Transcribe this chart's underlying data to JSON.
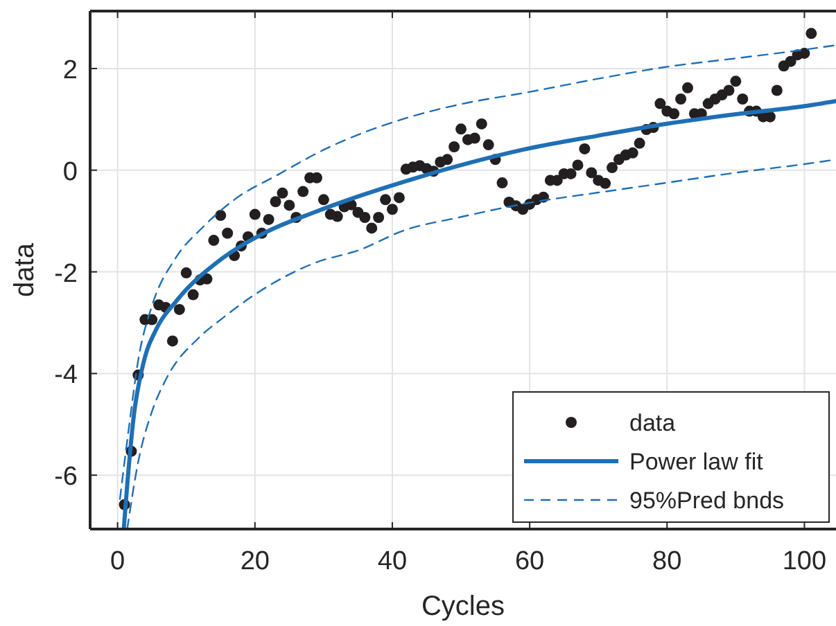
{
  "chart_data": {
    "type": "scatter",
    "xlabel": "Cycles",
    "ylabel": "data",
    "xlim": [
      -4,
      104.6
    ],
    "ylim": [
      -7.06,
      3.13
    ],
    "xticks": [
      0,
      20,
      40,
      60,
      80,
      100
    ],
    "yticks": [
      -6,
      -4,
      -2,
      0,
      2
    ],
    "grid": true,
    "legend": "bottom right",
    "series": [
      {
        "name": "data",
        "type": "scatter",
        "marker": "circle",
        "color": "#231f20",
        "x": [
          1,
          2,
          3,
          4,
          5,
          6,
          7,
          8,
          9,
          10,
          11,
          12,
          13,
          14,
          15,
          16,
          17,
          18,
          19,
          20,
          21,
          22,
          23,
          24,
          25,
          26,
          27,
          28,
          29,
          30,
          31,
          32,
          33,
          34,
          35,
          36,
          37,
          38,
          39,
          40,
          41,
          42,
          43,
          44,
          45,
          46,
          47,
          48,
          49,
          50,
          51,
          52,
          53,
          54,
          55,
          56,
          57,
          58,
          59,
          60,
          61,
          62,
          63,
          64,
          65,
          66,
          67,
          68,
          69,
          70,
          71,
          72,
          73,
          74,
          75,
          76,
          77,
          78,
          79,
          80,
          81,
          82,
          83,
          84,
          85,
          86,
          87,
          88,
          89,
          90,
          91,
          92,
          93,
          94,
          95,
          96,
          97,
          98,
          99,
          100,
          101
        ],
        "values": [
          -6.58,
          -5.53,
          -4.03,
          -2.94,
          -2.94,
          -2.65,
          -2.7,
          -3.36,
          -2.74,
          -2.02,
          -2.45,
          -2.16,
          -2.14,
          -1.38,
          -0.89,
          -1.24,
          -1.68,
          -1.49,
          -1.31,
          -0.87,
          -1.24,
          -0.97,
          -0.62,
          -0.45,
          -0.69,
          -0.93,
          -0.42,
          -0.15,
          -0.15,
          -0.58,
          -0.87,
          -0.91,
          -0.72,
          -0.68,
          -0.83,
          -0.93,
          -1.14,
          -0.93,
          -0.58,
          -0.77,
          -0.54,
          0.02,
          0.06,
          0.09,
          0.03,
          -0.02,
          0.16,
          0.21,
          0.46,
          0.81,
          0.6,
          0.63,
          0.91,
          0.5,
          0.21,
          -0.25,
          -0.63,
          -0.7,
          -0.77,
          -0.67,
          -0.58,
          -0.53,
          -0.2,
          -0.2,
          -0.07,
          -0.07,
          0.1,
          0.42,
          -0.05,
          -0.2,
          -0.26,
          0.05,
          0.21,
          0.3,
          0.34,
          0.53,
          0.8,
          0.84,
          1.31,
          1.16,
          1.11,
          1.4,
          1.62,
          1.11,
          1.11,
          1.31,
          1.4,
          1.48,
          1.57,
          1.75,
          1.4,
          1.16,
          1.16,
          1.05,
          1.05,
          1.57,
          2.05,
          2.14,
          2.27,
          2.3,
          2.69
        ]
      },
      {
        "name": "Power law fit",
        "type": "line",
        "line_style": "solid",
        "color": "#1f6fb5",
        "x": [
          0.9,
          1.35,
          2.36,
          3.7,
          5.7,
          8.4,
          15.2,
          21.9,
          28.6,
          35.4,
          41.4,
          50,
          59.6,
          70,
          79.8,
          90,
          100,
          104.6
        ],
        "values": [
          -7.06,
          -6.28,
          -4.83,
          -3.83,
          -3.11,
          -2.6,
          -1.74,
          -1.2,
          -0.83,
          -0.5,
          -0.24,
          0.1,
          0.42,
          0.68,
          0.91,
          1.1,
          1.26,
          1.36
        ]
      },
      {
        "name": "95%Pred bnds",
        "type": "line",
        "line_style": "dashed",
        "color": "#1f6fb5",
        "x": [
          1.4,
          3,
          5,
          7.1,
          11.8,
          15.2,
          20.5,
          28.6,
          35.4,
          41.4,
          50,
          59.6,
          70,
          79.8,
          90,
          100,
          104.6
        ],
        "values": [
          -7.06,
          -5.74,
          -4.75,
          -4.1,
          -3.3,
          -2.92,
          -2.4,
          -1.83,
          -1.56,
          -1.2,
          -0.92,
          -0.65,
          -0.44,
          -0.25,
          -0.05,
          0.12,
          0.21
        ]
      },
      {
        "type": "line",
        "line_style": "dashed",
        "color": "#1f6fb5",
        "x": [
          0.34,
          1.7,
          3,
          5.05,
          8.4,
          12.5,
          17.2,
          23.2,
          30,
          41.4,
          50,
          59.6,
          70,
          79.8,
          90,
          100,
          104.6
        ],
        "values": [
          -6.47,
          -5.01,
          -3.74,
          -2.65,
          -1.74,
          -1.11,
          -0.56,
          -0.1,
          0.4,
          1.0,
          1.3,
          1.53,
          1.8,
          2.03,
          2.2,
          2.37,
          2.46
        ]
      }
    ]
  }
}
